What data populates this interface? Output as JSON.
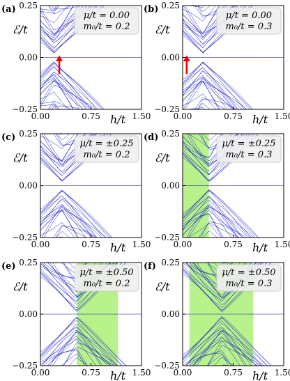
{
  "figure": {
    "x_tick_labels": [
      "0.00",
      "0.75",
      "1.50"
    ],
    "y_tick_labels": [
      "0.25",
      "0.00",
      "−0.25"
    ],
    "xlabel": "h/t",
    "ylabel": "ℰ/t"
  },
  "colors": {
    "bands": "#0000cc",
    "topological_region": "#b8f28a",
    "arrow": "#ee0000",
    "dashed_line": "#888888"
  },
  "chart_data": [
    {
      "panel": "(a)",
      "type": "line",
      "legend": [
        "μ/t = 0.00",
        "m₀/t = 0.2"
      ],
      "mu": 0.0,
      "m0": 0.2,
      "xlim": [
        0,
        1.5
      ],
      "ylim": [
        -0.25,
        0.25
      ],
      "shaded_h_range": null,
      "arrow_h": 0.28,
      "xlabel": "h/t",
      "ylabel": "ℰ/t"
    },
    {
      "panel": "(b)",
      "type": "line",
      "legend": [
        "μ/t = 0.00",
        "m₀/t = 0.3"
      ],
      "mu": 0.0,
      "m0": 0.3,
      "xlim": [
        0,
        1.5
      ],
      "ylim": [
        -0.25,
        0.25
      ],
      "shaded_h_range": null,
      "arrow_h": 0.06,
      "xlabel": "h/t",
      "ylabel": "ℰ/t"
    },
    {
      "panel": "(c)",
      "type": "line",
      "legend": [
        "μ/t = ±0.25",
        "m₀/t = 0.2"
      ],
      "mu": 0.25,
      "m0": 0.2,
      "xlim": [
        0,
        1.5
      ],
      "ylim": [
        -0.25,
        0.25
      ],
      "shaded_h_range": null,
      "arrow_h": null,
      "xlabel": "h/t",
      "ylabel": "ℰ/t"
    },
    {
      "panel": "(d)",
      "type": "line",
      "legend": [
        "μ/t = ±0.25",
        "m₀/t = 0.3"
      ],
      "mu": 0.25,
      "m0": 0.3,
      "xlim": [
        0,
        1.5
      ],
      "ylim": [
        -0.25,
        0.25
      ],
      "shaded_h_range": [
        0.0,
        0.39
      ],
      "arrow_h": null,
      "xlabel": "h/t",
      "ylabel": "ℰ/t"
    },
    {
      "panel": "(e)",
      "type": "line",
      "legend": [
        "μ/t = ±0.50",
        "m₀/t = 0.2"
      ],
      "mu": 0.5,
      "m0": 0.2,
      "xlim": [
        0,
        1.5
      ],
      "ylim": [
        -0.25,
        0.25
      ],
      "shaded_h_range": [
        0.54,
        1.15
      ],
      "arrow_h": null,
      "xlabel": "h/t",
      "ylabel": "ℰ/t"
    },
    {
      "panel": "(f)",
      "type": "line",
      "legend": [
        "μ/t = ±0.50",
        "m₀/t = 0.3"
      ],
      "mu": 0.5,
      "m0": 0.3,
      "xlim": [
        0,
        1.5
      ],
      "ylim": [
        -0.25,
        0.25
      ],
      "shaded_h_range": [
        0.1,
        1.05
      ],
      "arrow_h": null,
      "xlabel": "h/t",
      "ylabel": "ℰ/t"
    }
  ]
}
